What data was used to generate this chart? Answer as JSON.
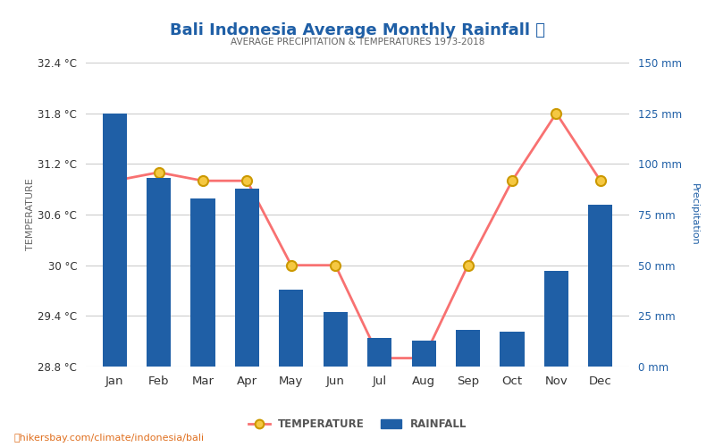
{
  "months": [
    "Jan",
    "Feb",
    "Mar",
    "Apr",
    "May",
    "Jun",
    "Jul",
    "Aug",
    "Sep",
    "Oct",
    "Nov",
    "Dec"
  ],
  "rainfall_mm": [
    125,
    93,
    83,
    88,
    38,
    27,
    14,
    13,
    18,
    17,
    47,
    80
  ],
  "temperature_c": [
    31.0,
    31.1,
    31.0,
    31.0,
    30.0,
    30.0,
    28.9,
    28.9,
    30.0,
    31.0,
    31.8,
    31.0
  ],
  "title": "Bali Indonesia Average Monthly Rainfall 🌧",
  "subtitle": "AVERAGE PRECIPITATION & TEMPERATURES 1973-2018",
  "ylabel_left": "TEMPERATURE",
  "ylabel_right": "Precipitation",
  "temp_ylim": [
    28.8,
    32.4
  ],
  "precip_ylim": [
    0,
    150
  ],
  "temp_yticks": [
    28.8,
    29.4,
    30.0,
    30.6,
    31.2,
    31.8,
    32.4
  ],
  "precip_yticks": [
    0,
    25,
    50,
    75,
    100,
    125,
    150
  ],
  "temp_ytick_labels": [
    "28.8 °C",
    "29.4 °C",
    "30 °C",
    "30.6 °C",
    "31.2 °C",
    "31.8 °C",
    "32.4 °C"
  ],
  "precip_ytick_labels": [
    "0 mm",
    "25 mm",
    "50 mm",
    "75 mm",
    "100 mm",
    "125 mm",
    "150 mm"
  ],
  "bar_color": "#1f5fa6",
  "line_color": "#f87171",
  "marker_face": "#f5c842",
  "marker_edge": "#cc9900",
  "title_color": "#1f5fa6",
  "subtitle_color": "#666666",
  "left_axis_color": "#333333",
  "right_axis_color": "#1f5fa6",
  "bg_color": "#ffffff",
  "grid_color": "#cccccc",
  "footer_text": "hikersbay.com/climate/indonesia/bali",
  "legend_temp_label": "TEMPERATURE",
  "legend_rain_label": "RAINFALL"
}
